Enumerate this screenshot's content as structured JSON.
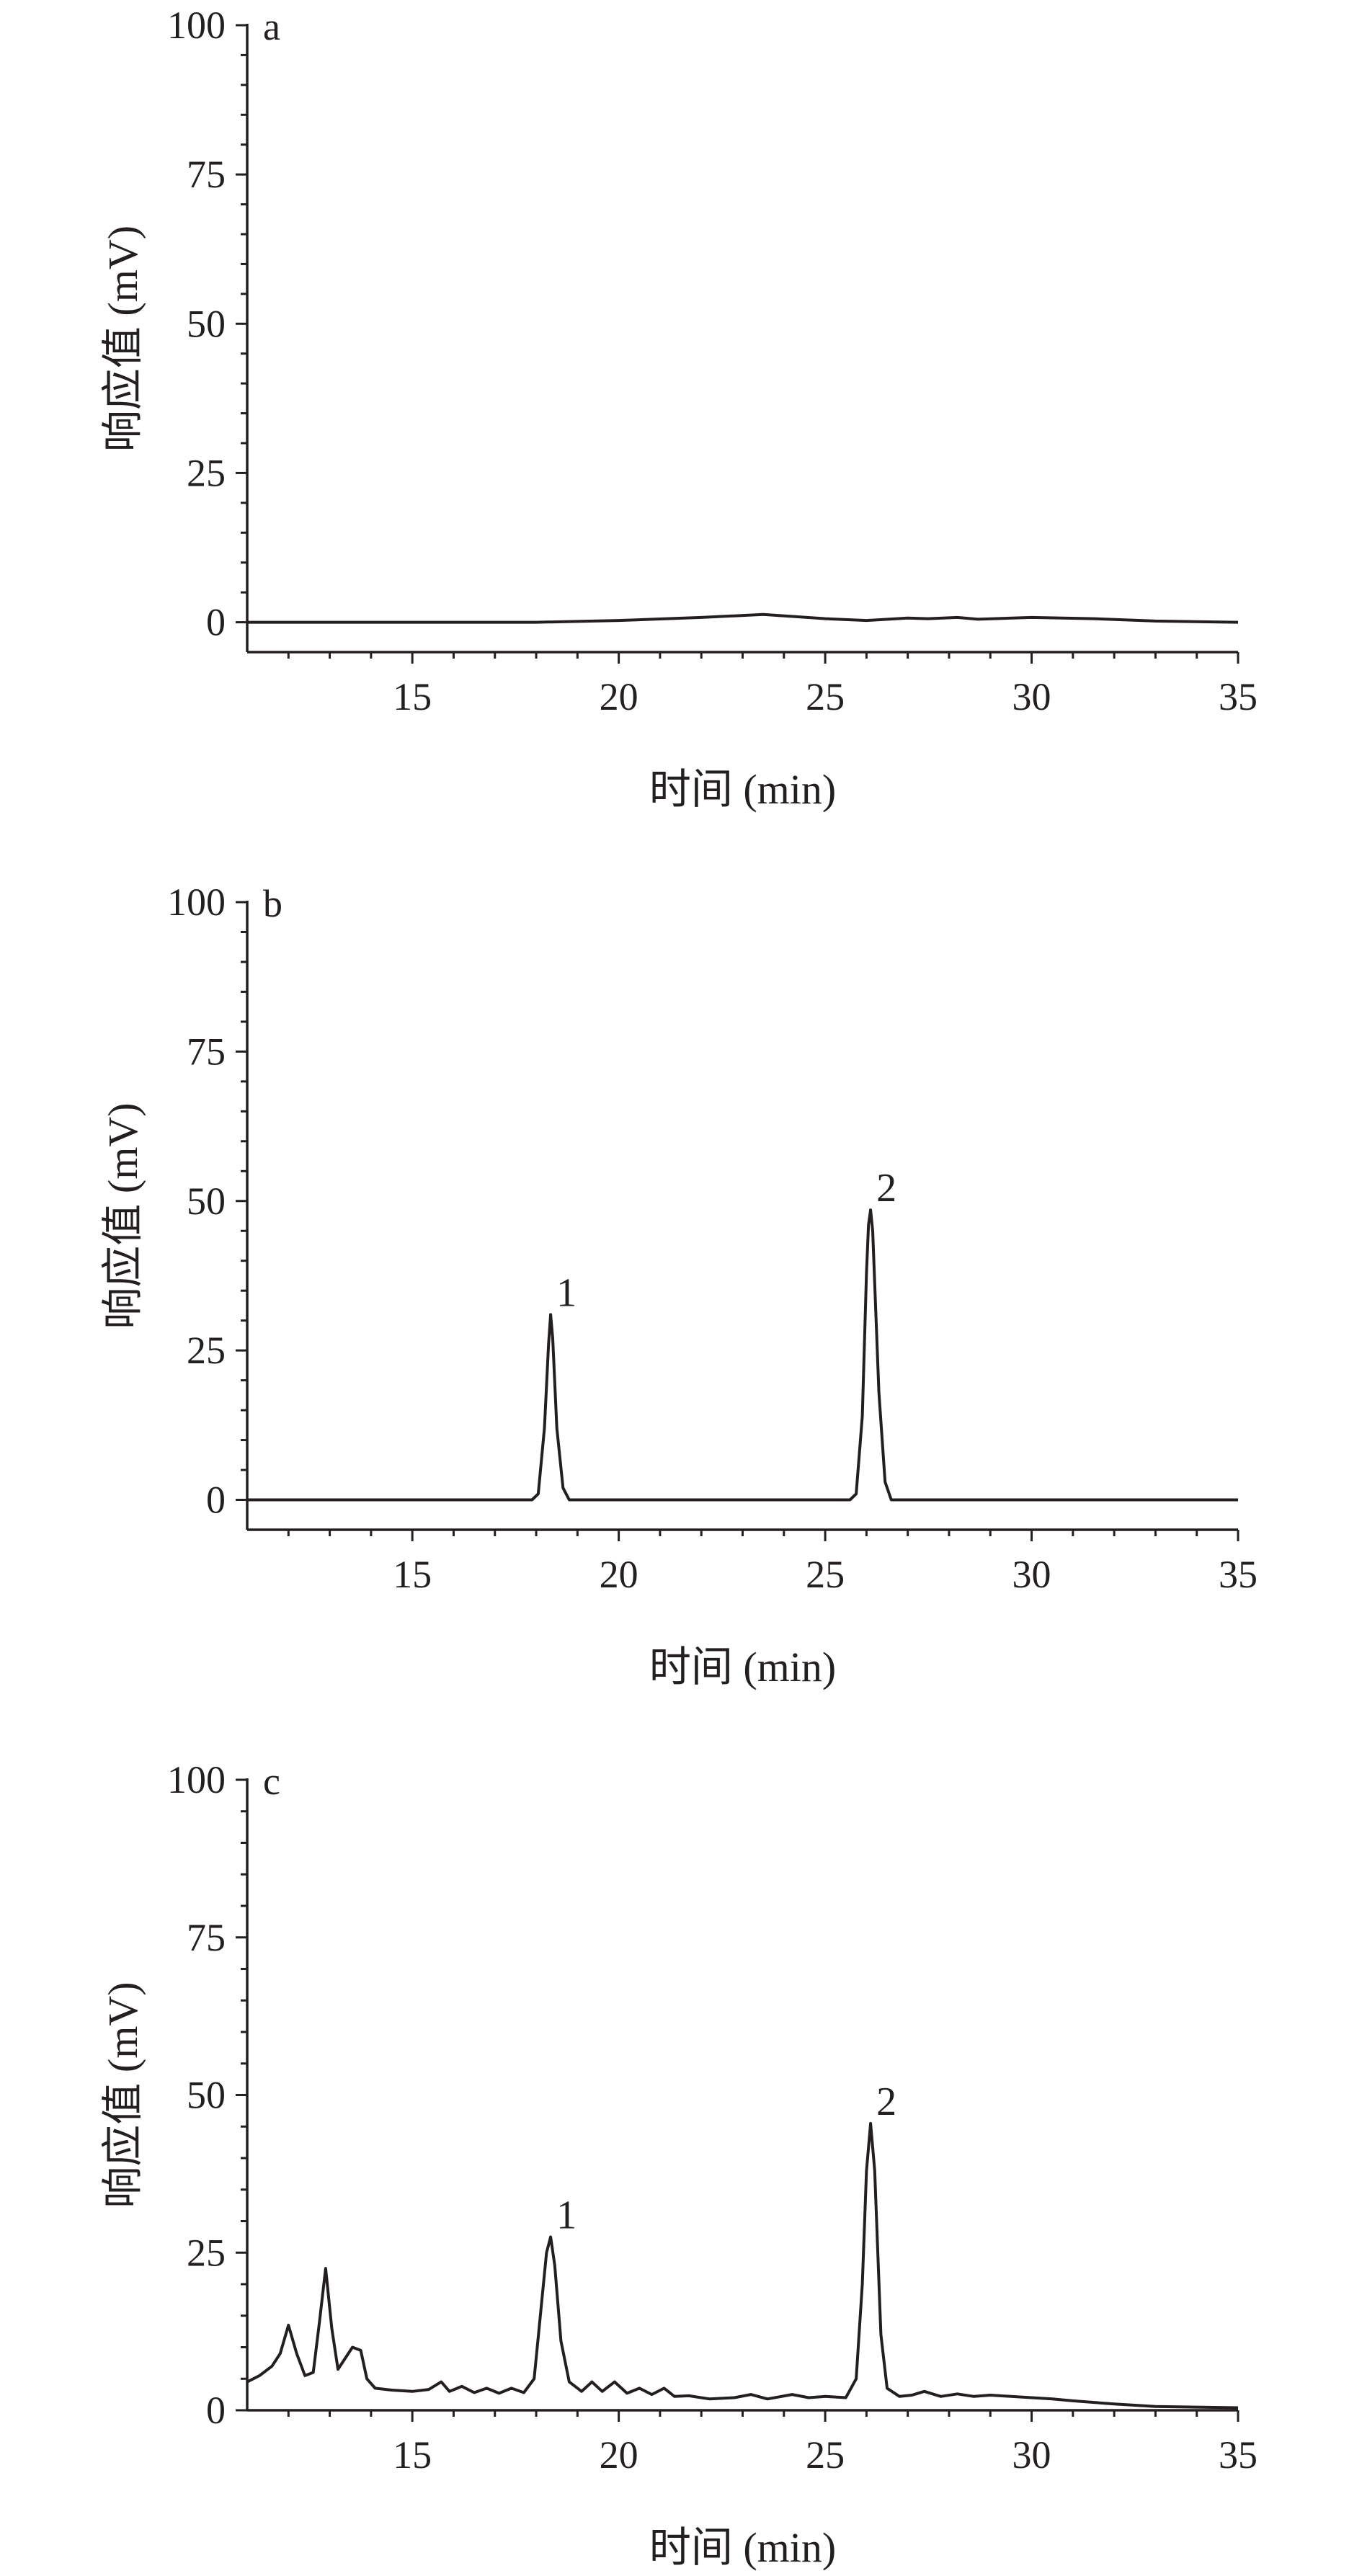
{
  "chart_data": [
    {
      "type": "line",
      "panel_label": "a",
      "xlabel": "时间 (min)",
      "ylabel": "响应值 (mV)",
      "xlim": [
        11,
        35
      ],
      "ylim": [
        -5,
        100
      ],
      "xticks": [
        "15",
        "20",
        "25",
        "30",
        "35"
      ],
      "yticks": [
        "0",
        "25",
        "50",
        "75",
        "100"
      ],
      "peak_labels": [],
      "series": [
        {
          "x": [
            11,
            18,
            20,
            22,
            23.5,
            25,
            26,
            27,
            27.5,
            28.2,
            28.7,
            30,
            31.5,
            33,
            35
          ],
          "y": [
            0,
            0,
            0.3,
            0.8,
            1.3,
            0.6,
            0.3,
            0.7,
            0.6,
            0.8,
            0.5,
            0.8,
            0.6,
            0.2,
            0
          ]
        }
      ]
    },
    {
      "type": "line",
      "panel_label": "b",
      "xlabel": "时间 (min)",
      "ylabel": "响应值 (mV)",
      "xlim": [
        11,
        35
      ],
      "ylim": [
        -5,
        100
      ],
      "xticks": [
        "15",
        "20",
        "25",
        "30",
        "35"
      ],
      "yticks": [
        "0",
        "25",
        "50",
        "75",
        "100"
      ],
      "peak_labels": [
        {
          "text": "1",
          "x": 18.35,
          "y": 31
        },
        {
          "text": "2",
          "x": 26.1,
          "y": 48.5
        }
      ],
      "series": [
        {
          "x": [
            11,
            17.9,
            18.05,
            18.2,
            18.3,
            18.35,
            18.4,
            18.5,
            18.65,
            18.8,
            25.6,
            25.75,
            25.9,
            26.0,
            26.05,
            26.1,
            26.15,
            26.3,
            26.45,
            26.6,
            35
          ],
          "y": [
            0,
            0,
            1,
            12,
            26,
            31,
            27,
            12,
            2,
            0,
            0,
            1,
            14,
            38,
            46,
            48.5,
            45,
            18,
            3,
            0,
            0
          ]
        }
      ]
    },
    {
      "type": "line",
      "panel_label": "c",
      "xlabel": "时间 (min)",
      "ylabel": "响应值 (mV)",
      "xlim": [
        11,
        35
      ],
      "ylim": [
        0,
        100
      ],
      "xticks": [
        "15",
        "20",
        "25",
        "30",
        "35"
      ],
      "yticks": [
        "0",
        "25",
        "50",
        "75",
        "100"
      ],
      "peak_labels": [
        {
          "text": "1",
          "x": 18.35,
          "y": 27.5
        },
        {
          "text": "2",
          "x": 26.1,
          "y": 45.5
        }
      ],
      "series": [
        {
          "x": [
            11,
            11.3,
            11.6,
            11.8,
            12.0,
            12.2,
            12.4,
            12.6,
            12.75,
            12.9,
            13.05,
            13.2,
            13.4,
            13.55,
            13.75,
            13.9,
            14.1,
            14.5,
            15.0,
            15.4,
            15.7,
            15.9,
            16.2,
            16.5,
            16.8,
            17.1,
            17.4,
            17.7,
            17.95,
            18.1,
            18.25,
            18.35,
            18.45,
            18.6,
            18.8,
            19.1,
            19.35,
            19.6,
            19.9,
            20.2,
            20.5,
            20.8,
            21.1,
            21.35,
            21.7,
            22.2,
            22.8,
            23.2,
            23.6,
            24.2,
            24.6,
            25.0,
            25.5,
            25.75,
            25.9,
            26.0,
            26.1,
            26.2,
            26.35,
            26.5,
            26.8,
            27.1,
            27.4,
            27.8,
            28.2,
            28.6,
            29.0,
            30.0,
            30.5,
            31.0,
            32.0,
            33.0,
            35.0
          ],
          "y": [
            4.5,
            5.5,
            7,
            9,
            13.5,
            9,
            5.5,
            6,
            14,
            22.5,
            13,
            6.5,
            8.5,
            10,
            9.5,
            5,
            3.5,
            3.2,
            3,
            3.3,
            4.5,
            3,
            3.8,
            2.8,
            3.5,
            2.7,
            3.5,
            2.8,
            5,
            15,
            25,
            27.5,
            23,
            11,
            4.5,
            3,
            4.5,
            3,
            4.5,
            2.7,
            3.5,
            2.5,
            3.5,
            2.2,
            2.3,
            1.8,
            2.0,
            2.5,
            1.8,
            2.5,
            2.0,
            2.2,
            2.0,
            5,
            20,
            38,
            45.5,
            38,
            12,
            3.5,
            2.2,
            2.4,
            3,
            2.2,
            2.6,
            2.2,
            2.4,
            2.0,
            1.8,
            1.5,
            1.0,
            0.6,
            0.4
          ]
        }
      ]
    }
  ]
}
